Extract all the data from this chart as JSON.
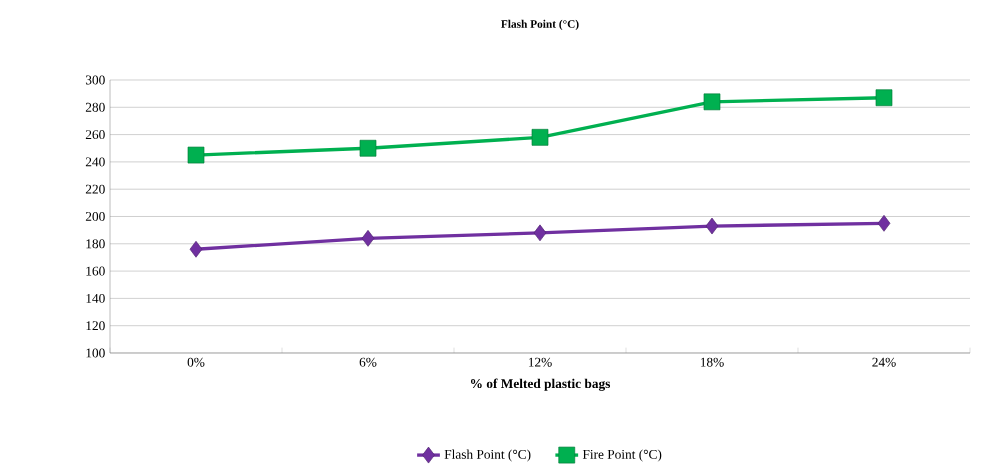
{
  "chart_data": {
    "type": "line",
    "title": "Flash Point (°C)",
    "xlabel": "% of Melted plastic bags",
    "categories": [
      "0%",
      "6%",
      "12%",
      "18%",
      "24%"
    ],
    "series": [
      {
        "name": "Flash Point (°C)",
        "color": "#7030a0",
        "marker": "diamond",
        "values": [
          176,
          184,
          188,
          193,
          195
        ]
      },
      {
        "name": "Fire Point (°C)",
        "color": "#00b050",
        "marker": "square",
        "values": [
          245,
          250,
          258,
          284,
          287
        ]
      }
    ],
    "ylim": [
      100,
      300
    ],
    "yticks": [
      100,
      120,
      140,
      160,
      180,
      200,
      220,
      240,
      260,
      280,
      300
    ],
    "grid": "y",
    "legend": "bottom",
    "line_style": "solid"
  }
}
